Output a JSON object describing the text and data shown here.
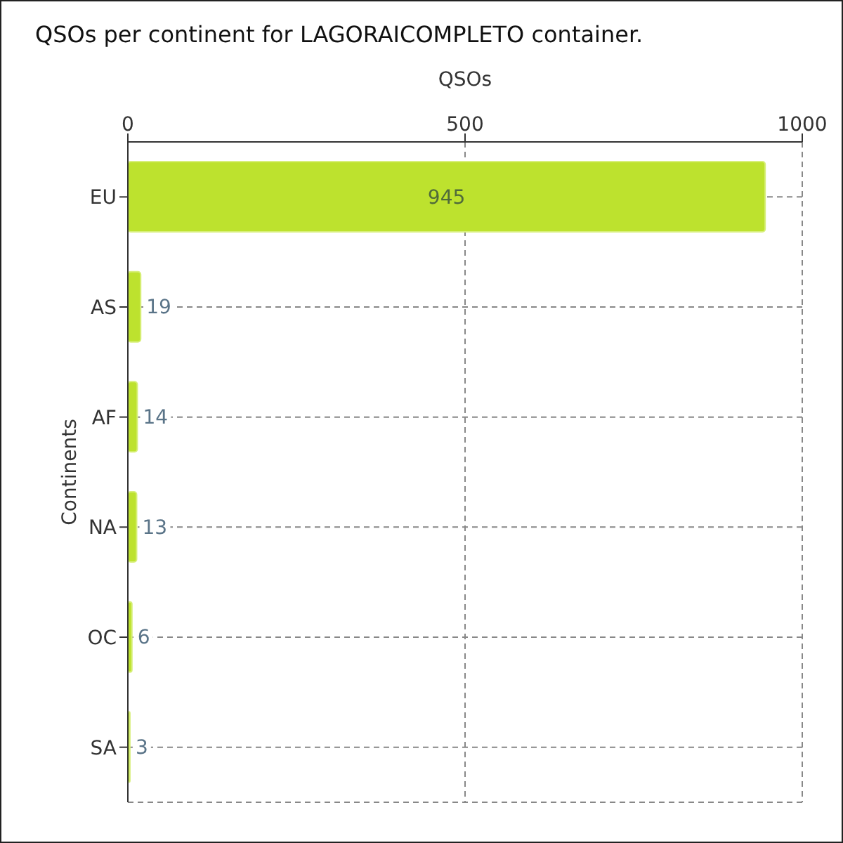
{
  "chart_data": {
    "type": "bar",
    "orientation": "horizontal",
    "title": "QSOs per continent for LAGORAICOMPLETO container.",
    "xlabel": "QSOs",
    "ylabel": "Continents",
    "categories": [
      "EU",
      "AS",
      "AF",
      "NA",
      "OC",
      "SA"
    ],
    "values": [
      945,
      19,
      14,
      13,
      6,
      3
    ],
    "color": "#bde22e",
    "xlim": [
      0,
      1000
    ],
    "xticks": [
      0,
      500,
      1000
    ],
    "grid": true,
    "data_labels": true
  }
}
